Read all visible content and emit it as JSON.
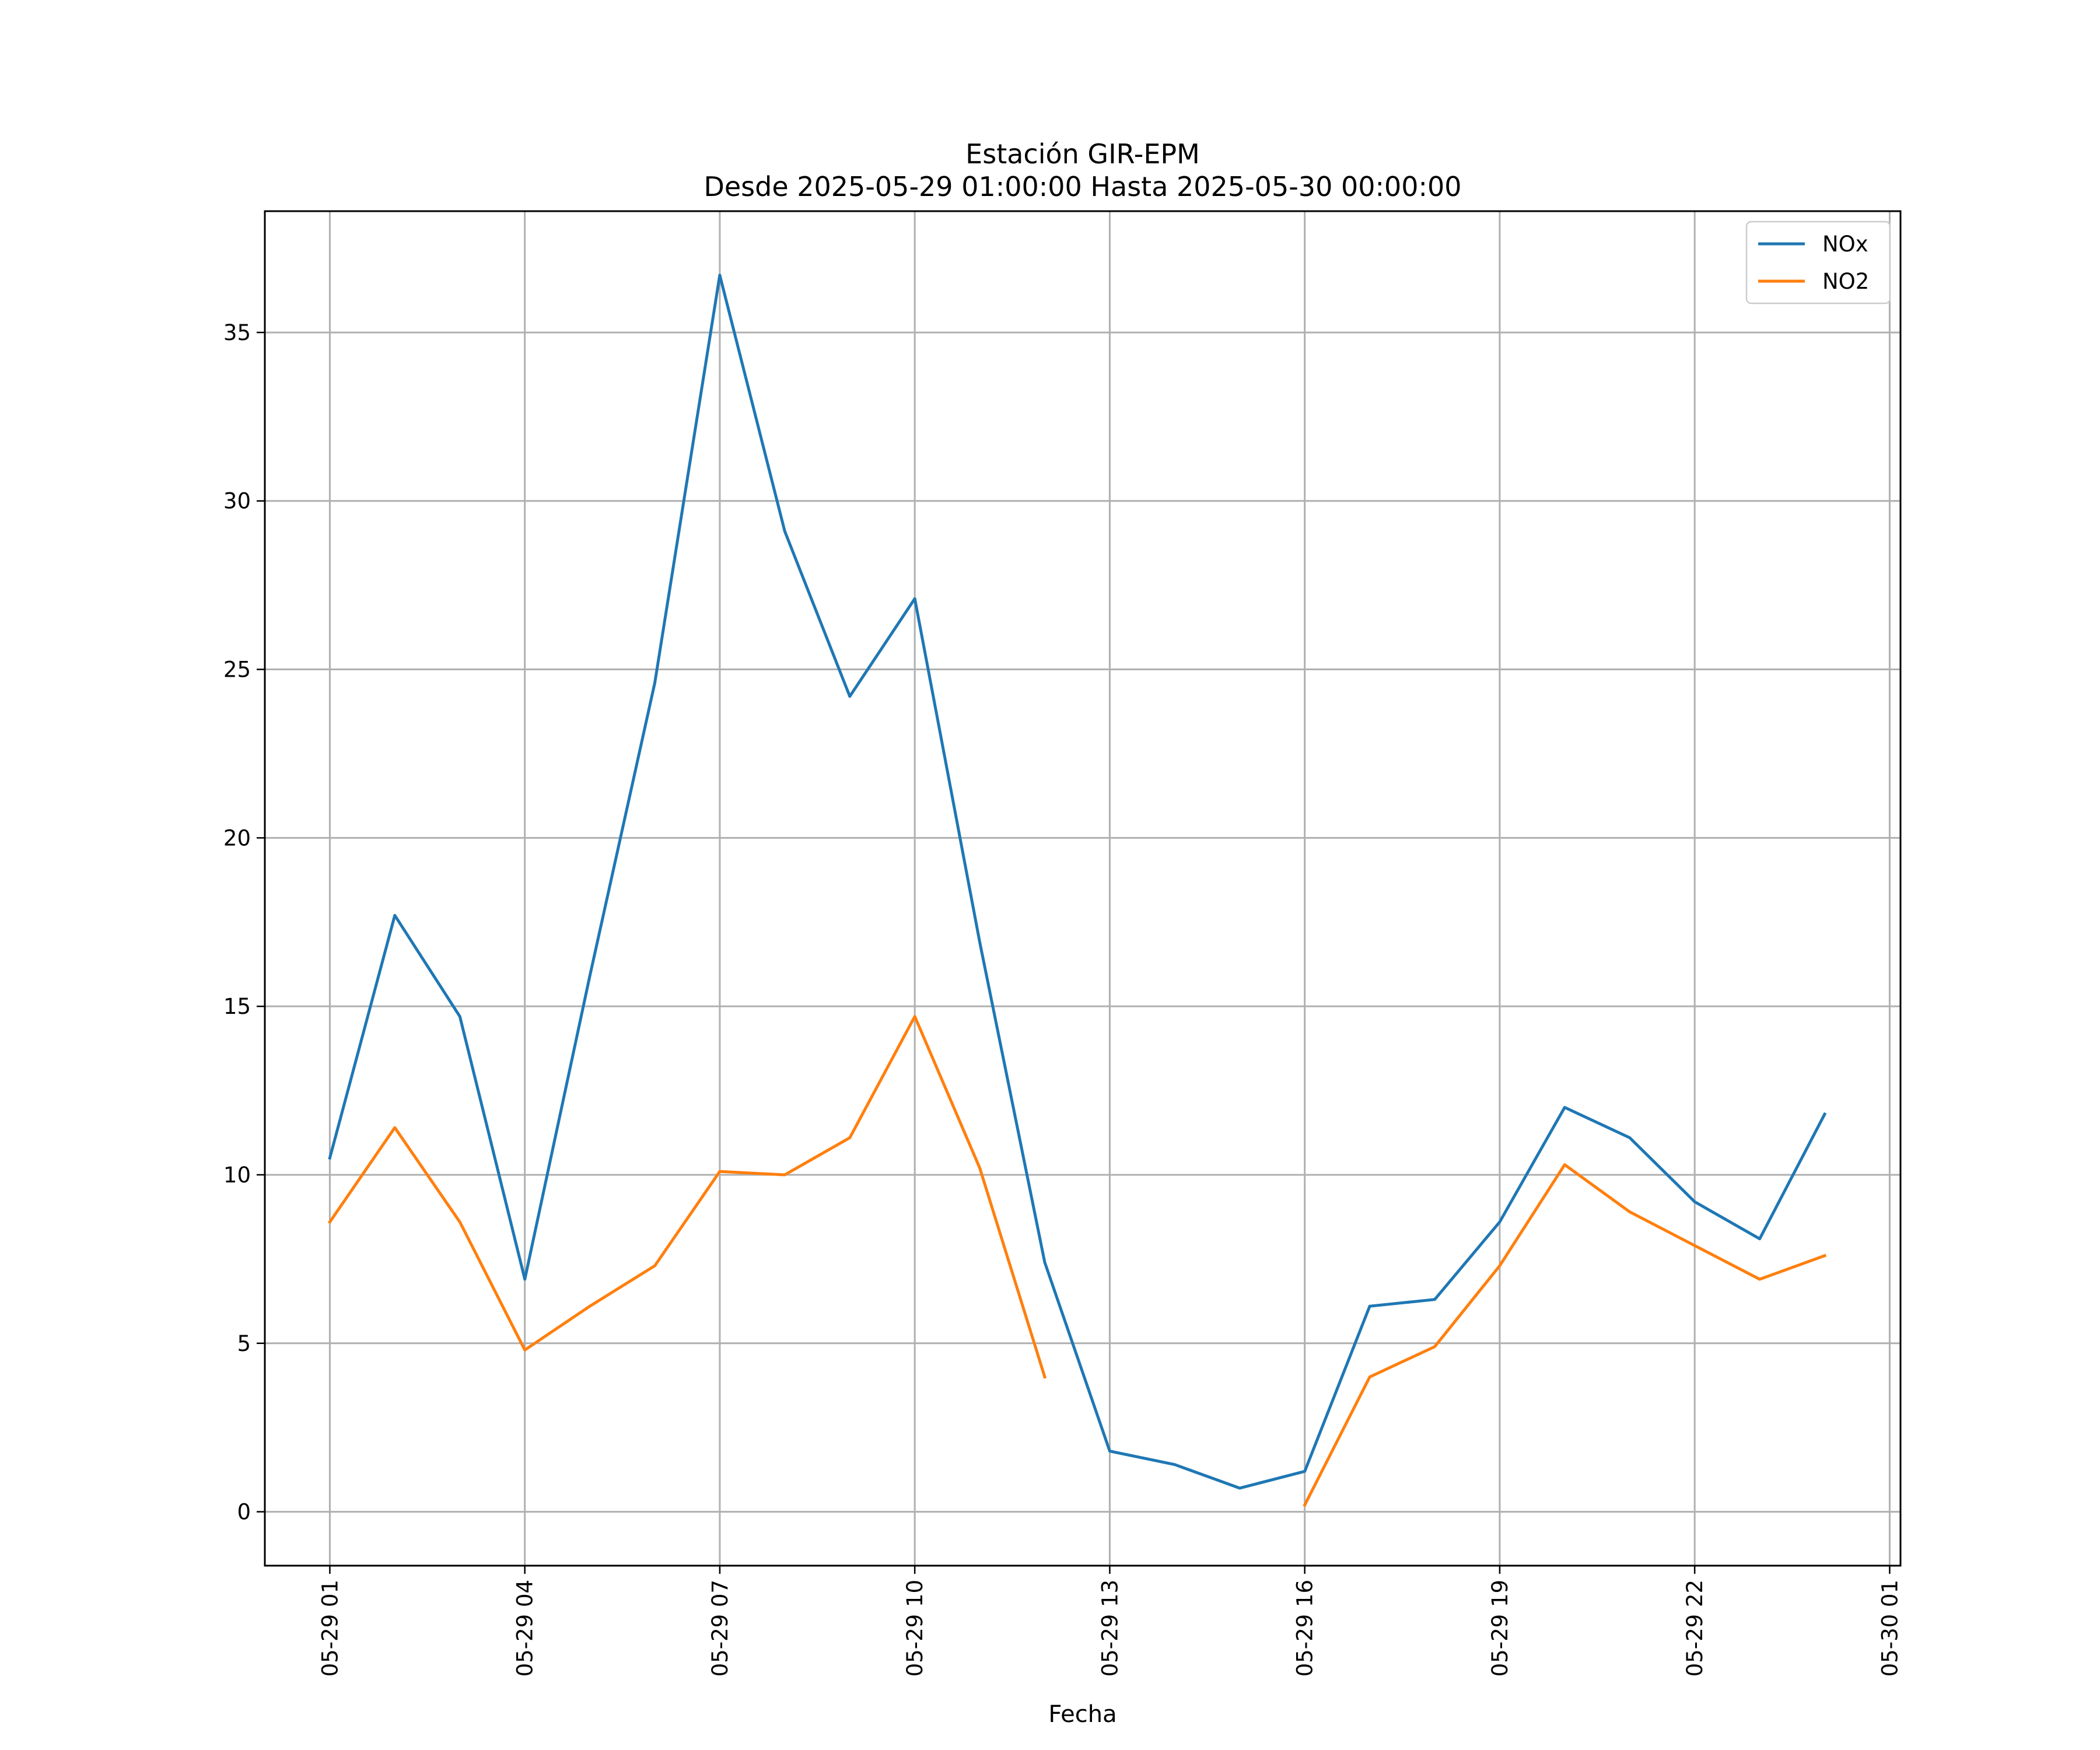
{
  "chart_data": {
    "type": "line",
    "title": "Estación GIR-EPM",
    "subtitle": "Desde 2025-05-29 01:00:00 Hasta 2025-05-30 00:00:00",
    "xlabel": "Fecha",
    "ylabel": "",
    "x": [
      "2025-05-29 01:00",
      "2025-05-29 02:00",
      "2025-05-29 03:00",
      "2025-05-29 04:00",
      "2025-05-29 05:00",
      "2025-05-29 06:00",
      "2025-05-29 07:00",
      "2025-05-29 08:00",
      "2025-05-29 09:00",
      "2025-05-29 10:00",
      "2025-05-29 11:00",
      "2025-05-29 12:00",
      "2025-05-29 13:00",
      "2025-05-29 14:00",
      "2025-05-29 15:00",
      "2025-05-29 16:00",
      "2025-05-29 17:00",
      "2025-05-29 18:00",
      "2025-05-29 19:00",
      "2025-05-29 20:00",
      "2025-05-29 21:00",
      "2025-05-29 22:00",
      "2025-05-29 23:00",
      "2025-05-30 00:00"
    ],
    "xlim": [
      "2025-05-29 00:00",
      "2025-05-30 01:10"
    ],
    "ylim": [
      -1.6,
      38.6
    ],
    "x_ticks": [
      "05-29 01",
      "05-29 04",
      "05-29 07",
      "05-29 10",
      "05-29 13",
      "05-29 16",
      "05-29 19",
      "05-29 22",
      "05-30 01"
    ],
    "y_ticks": [
      0,
      5,
      10,
      15,
      20,
      25,
      30,
      35
    ],
    "grid": true,
    "legend_position": "top-right",
    "series": [
      {
        "name": "NOx",
        "color": "#1f77b4",
        "values": [
          10.5,
          17.7,
          14.7,
          6.9,
          15.9,
          24.6,
          36.7,
          29.1,
          24.2,
          27.1,
          16.9,
          7.4,
          1.8,
          1.4,
          0.7,
          1.2,
          6.1,
          6.3,
          8.6,
          12.0,
          11.1,
          9.2,
          8.1,
          11.8
        ]
      },
      {
        "name": "NO2",
        "color": "#ff7f0e",
        "values": [
          8.6,
          11.4,
          8.6,
          4.8,
          6.1,
          7.3,
          10.1,
          10.0,
          11.1,
          14.7,
          10.2,
          4.0,
          null,
          null,
          null,
          0.2,
          4.0,
          4.9,
          7.3,
          10.3,
          8.9,
          7.9,
          6.9,
          7.6
        ]
      }
    ]
  }
}
